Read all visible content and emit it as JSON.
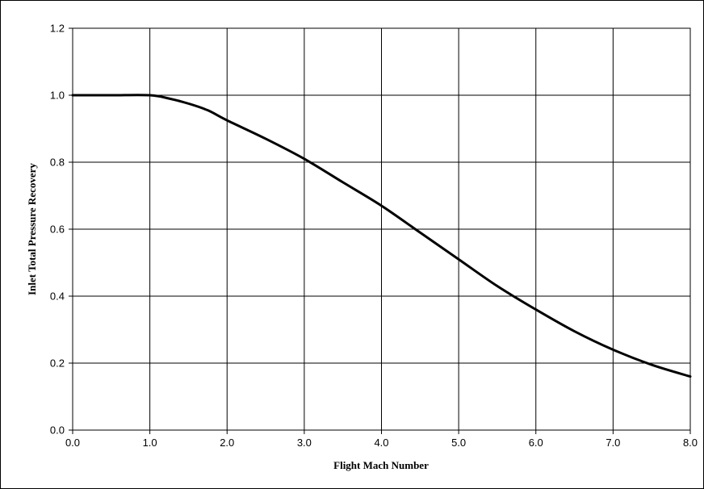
{
  "chart_data": {
    "type": "line",
    "title": "",
    "xlabel": "Flight Mach Number",
    "ylabel": "Inlet Total Pressure Recovery",
    "xlim": [
      0,
      8
    ],
    "ylim": [
      0,
      1.2
    ],
    "xticks": [
      "0.0",
      "1.0",
      "2.0",
      "3.0",
      "4.0",
      "5.0",
      "6.0",
      "7.0",
      "8.0"
    ],
    "yticks": [
      "0.0",
      "0.2",
      "0.4",
      "0.6",
      "0.8",
      "1.0",
      "1.2"
    ],
    "grid": true,
    "legend": "none",
    "line_color": "#000000",
    "series": [
      {
        "x": [
          0,
          0.5,
          1.0,
          1.25,
          1.5,
          1.75,
          2.0,
          2.5,
          3.0,
          3.5,
          4.0,
          4.5,
          5.0,
          5.5,
          6.0,
          6.5,
          7.0,
          7.5,
          8.0
        ],
        "values": [
          1.0,
          1.0,
          1.0,
          0.99,
          0.975,
          0.955,
          0.925,
          0.87,
          0.81,
          0.74,
          0.67,
          0.59,
          0.51,
          0.43,
          0.36,
          0.295,
          0.24,
          0.195,
          0.16
        ]
      }
    ]
  }
}
